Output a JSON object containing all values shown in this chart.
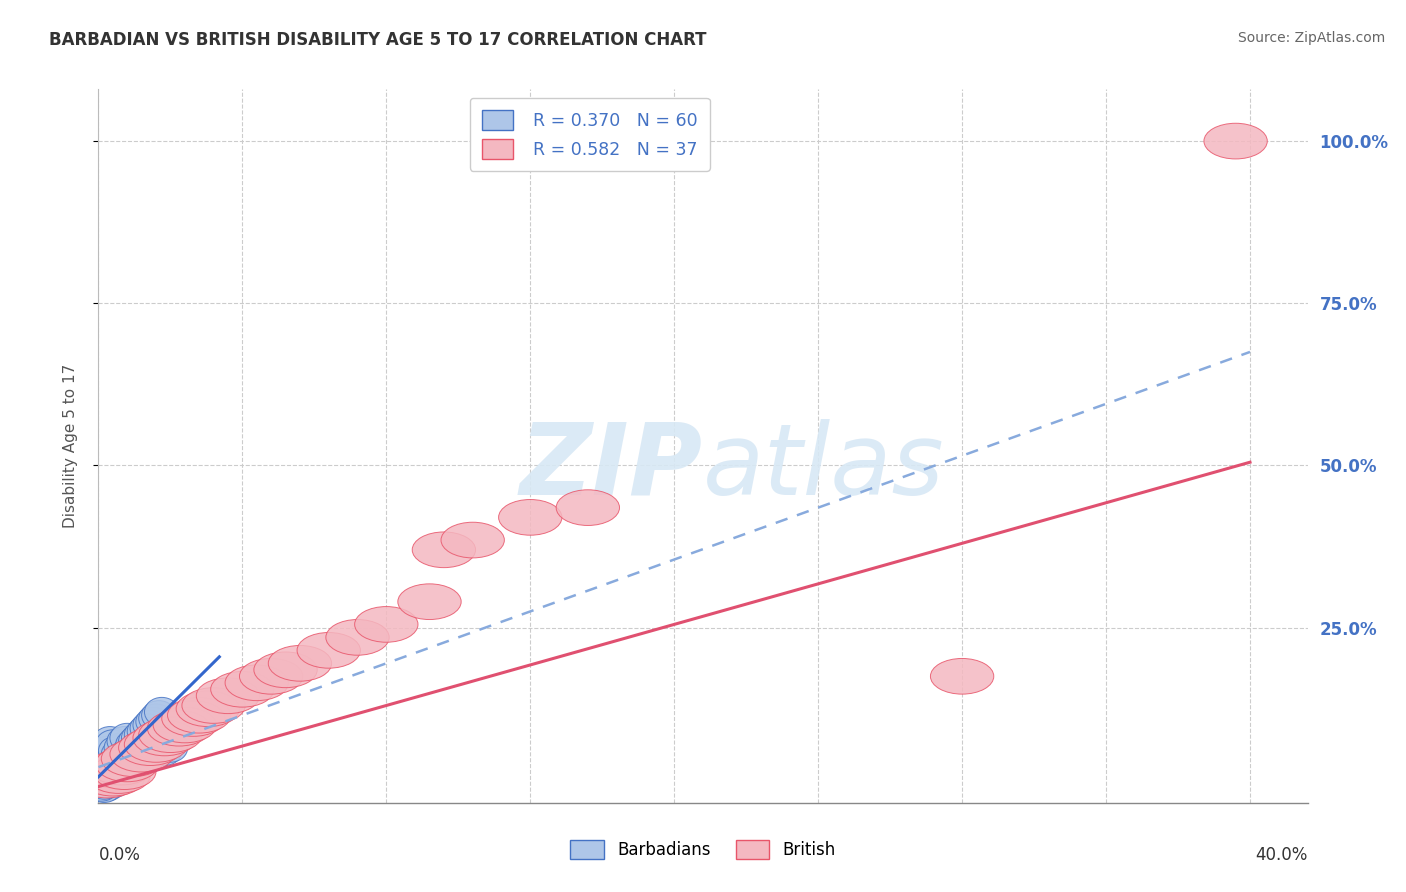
{
  "title": "BARBADIAN VS BRITISH DISABILITY AGE 5 TO 17 CORRELATION CHART",
  "source": "Source: ZipAtlas.com",
  "ylabel": "Disability Age 5 to 17",
  "xlim": [
    0.0,
    0.42
  ],
  "ylim": [
    -0.02,
    1.08
  ],
  "plot_xlim": [
    0.0,
    0.4
  ],
  "plot_ylim": [
    0.0,
    1.0
  ],
  "legend1_r": "0.370",
  "legend1_n": "60",
  "legend2_r": "0.582",
  "legend2_n": "37",
  "barbadian_color": "#aec6e8",
  "british_color": "#f4b8c1",
  "barbadian_line_color": "#3366cc",
  "british_line_color": "#e05070",
  "barbadian_edge_color": "#4472c4",
  "british_edge_color": "#e8556a",
  "dash_line_color": "#88aadd",
  "grid_color": "#cccccc",
  "ytick_color": "#4472c4",
  "watermark_color": "#d8e8f5",
  "title_color": "#333333",
  "source_color": "#666666",
  "ylabel_color": "#555555",
  "bottom_label_color": "#333333",
  "barb_line_x": [
    0.0,
    0.042
  ],
  "barb_line_y": [
    0.02,
    0.205
  ],
  "brit_line_x": [
    0.0,
    0.4
  ],
  "brit_line_y": [
    0.005,
    0.505
  ],
  "dash_line_x": [
    0.0,
    0.4
  ],
  "dash_line_y": [
    0.035,
    0.675
  ],
  "barb_points_x": [
    0.001,
    0.001,
    0.002,
    0.002,
    0.002,
    0.003,
    0.003,
    0.003,
    0.004,
    0.004,
    0.004,
    0.005,
    0.005,
    0.005,
    0.006,
    0.006,
    0.007,
    0.007,
    0.008,
    0.008,
    0.009,
    0.009,
    0.01,
    0.01,
    0.011,
    0.012,
    0.013,
    0.014,
    0.015,
    0.016,
    0.017,
    0.018,
    0.019,
    0.02,
    0.021,
    0.022,
    0.003,
    0.004,
    0.005,
    0.006,
    0.007,
    0.008,
    0.01,
    0.012,
    0.014,
    0.016,
    0.018,
    0.02,
    0.023,
    0.025,
    0.001,
    0.002,
    0.003,
    0.004,
    0.003,
    0.002,
    0.001,
    0.002,
    0.003,
    0.005
  ],
  "barb_points_y": [
    0.025,
    0.035,
    0.03,
    0.045,
    0.055,
    0.02,
    0.04,
    0.06,
    0.025,
    0.05,
    0.075,
    0.015,
    0.045,
    0.07,
    0.035,
    0.06,
    0.03,
    0.055,
    0.04,
    0.065,
    0.05,
    0.075,
    0.055,
    0.08,
    0.06,
    0.07,
    0.075,
    0.08,
    0.085,
    0.09,
    0.095,
    0.1,
    0.105,
    0.11,
    0.115,
    0.12,
    0.01,
    0.015,
    0.01,
    0.015,
    0.02,
    0.025,
    0.03,
    0.035,
    0.04,
    0.045,
    0.05,
    0.055,
    0.06,
    0.065,
    0.01,
    0.008,
    0.012,
    0.018,
    0.005,
    0.003,
    0.005,
    0.008,
    0.015,
    0.025
  ],
  "brit_points_x": [
    0.002,
    0.003,
    0.004,
    0.005,
    0.006,
    0.007,
    0.008,
    0.009,
    0.01,
    0.012,
    0.015,
    0.018,
    0.02,
    0.023,
    0.025,
    0.028,
    0.03,
    0.033,
    0.035,
    0.038,
    0.04,
    0.045,
    0.05,
    0.055,
    0.06,
    0.065,
    0.07,
    0.08,
    0.09,
    0.1,
    0.115,
    0.12,
    0.13,
    0.15,
    0.17,
    0.3,
    0.395
  ],
  "brit_points_y": [
    0.02,
    0.015,
    0.025,
    0.018,
    0.03,
    0.022,
    0.035,
    0.028,
    0.04,
    0.048,
    0.055,
    0.065,
    0.07,
    0.08,
    0.085,
    0.095,
    0.1,
    0.11,
    0.115,
    0.125,
    0.13,
    0.145,
    0.155,
    0.165,
    0.175,
    0.185,
    0.195,
    0.215,
    0.235,
    0.255,
    0.29,
    0.37,
    0.385,
    0.42,
    0.435,
    0.175,
    1.0
  ]
}
